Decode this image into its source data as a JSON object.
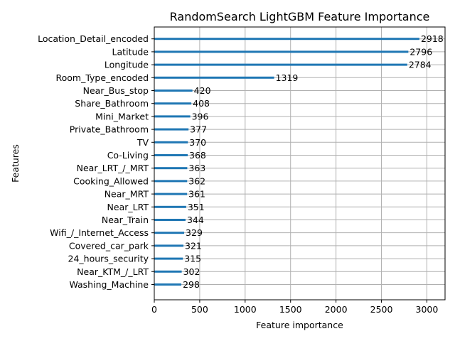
{
  "chart_data": {
    "type": "bar",
    "orientation": "horizontal",
    "title": "RandomSearch LightGBM Feature Importance",
    "xlabel": "Feature importance",
    "ylabel": "Features",
    "xlim": [
      0,
      3200
    ],
    "xticks": [
      0,
      500,
      1000,
      1500,
      2000,
      2500,
      3000
    ],
    "grid": true,
    "bar_color": "#1f77b4",
    "categories": [
      "Location_Detail_encoded",
      "Latitude",
      "Longitude",
      "Room_Type_encoded",
      "Near_Bus_stop",
      "Share_Bathroom",
      "Mini_Market",
      "Private_Bathroom",
      "TV",
      "Co-Living",
      "Near_LRT_/_MRT",
      "Cooking_Allowed",
      "Near_MRT",
      "Near_LRT",
      "Near_Train",
      "Wifi_/_Internet_Access",
      "Covered_car_park",
      "24_hours_security",
      "Near_KTM_/_LRT",
      "Washing_Machine"
    ],
    "values": [
      2918,
      2796,
      2784,
      1319,
      420,
      408,
      396,
      377,
      370,
      368,
      363,
      362,
      361,
      351,
      344,
      329,
      321,
      315,
      302,
      298
    ]
  }
}
